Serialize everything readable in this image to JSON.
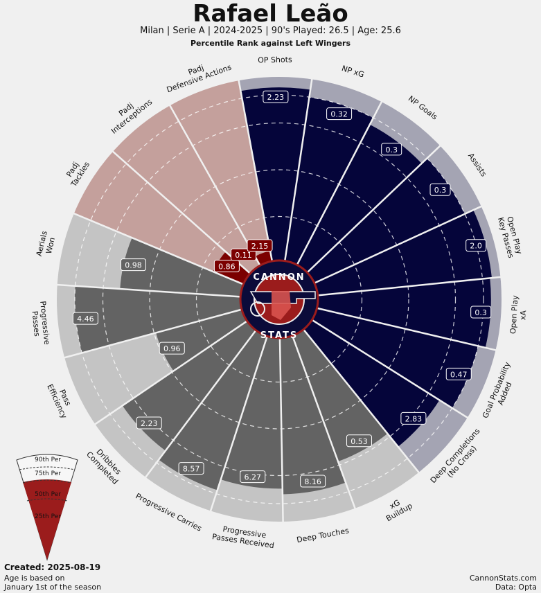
{
  "header": {
    "title": "Rafael Leão",
    "subtitle": "Milan  | Serie A | 2024-2025 | 90's Played: 26.5 | Age: 25.6",
    "subtitle2": "Percentile Rank against Left Wingers"
  },
  "footer": {
    "created": "Created: 2025-08-19",
    "age_note_line1": "Age is based on",
    "age_note_line2": "January 1st of the season",
    "site": "CannonStats.com",
    "data_source": "Data: Opta"
  },
  "logo": {
    "top_text": "CANNON",
    "bottom_text": "STATS"
  },
  "legend": {
    "labels": [
      "90th Per",
      "75th Per",
      "50th Per",
      "25th Per"
    ]
  },
  "colors": {
    "attacking": "#05053a",
    "attacking_bg": "#a4a4b3",
    "defending": "#7b0000",
    "defending_bg": "#c4a09c",
    "possession": "#636363",
    "possession_bg": "#c4c4c4",
    "logo_red": "#9b1c1c",
    "background": "#f0f0f0"
  },
  "chart_data": {
    "type": "radial_bar",
    "title": "Percentile Rank against Left Wingers",
    "percentile_range": [
      0,
      100
    ],
    "reference_rings": [
      25,
      50,
      75,
      90
    ],
    "metrics": [
      {
        "label": "OP Shots",
        "value": "2.23",
        "percentile": 94,
        "group": "attacking"
      },
      {
        "label": "NP xG",
        "value": "0.32",
        "percentile": 90,
        "group": "attacking"
      },
      {
        "label": "NP Goals",
        "value": "0.3",
        "percentile": 86,
        "group": "attacking"
      },
      {
        "label": "Assists",
        "value": "0.3",
        "percentile": 90,
        "group": "attacking"
      },
      {
        "label": "Open Play\nKey Passes",
        "value": "2.0",
        "percentile": 95,
        "group": "attacking"
      },
      {
        "label": "Open Play\nxA",
        "value": "0.3",
        "percentile": 94,
        "group": "attacking"
      },
      {
        "label": "Goal Probability\nAdded",
        "value": "0.47",
        "percentile": 90,
        "group": "attacking"
      },
      {
        "label": "Deep Completions\n(No Cross)",
        "value": "2.83",
        "percentile": 82,
        "group": "attacking"
      },
      {
        "label": "xG\nBuildup",
        "value": "0.53",
        "percentile": 73,
        "group": "possession"
      },
      {
        "label": "Deep Touches",
        "value": "8.16",
        "percentile": 85,
        "group": "possession"
      },
      {
        "label": "Progressive\nPasses Received",
        "value": "6.27",
        "percentile": 82,
        "group": "possession"
      },
      {
        "label": "Progressive Carries",
        "value": "8.57",
        "percentile": 88,
        "group": "possession"
      },
      {
        "label": "Dribbles\nCompleted",
        "value": "2.23",
        "percentile": 82,
        "group": "possession"
      },
      {
        "label": "Pass\nEfficiency",
        "value": "0.96",
        "percentile": 49,
        "group": "possession"
      },
      {
        "label": "Progressive\nPasses",
        "value": "4.46",
        "percentile": 90,
        "group": "possession"
      },
      {
        "label": "Aerials\nWon",
        "value": "0.98",
        "percentile": 66,
        "group": "possession"
      },
      {
        "label": "Padj\nTackles",
        "value": "0.86",
        "percentile": 19,
        "group": "defending"
      },
      {
        "label": "Padj\nInterceptions",
        "value": "0.11",
        "percentile": 1,
        "group": "defending"
      },
      {
        "label": "Padj\nDefensive Actions",
        "value": "2.15",
        "percentile": 7,
        "group": "defending"
      }
    ]
  }
}
